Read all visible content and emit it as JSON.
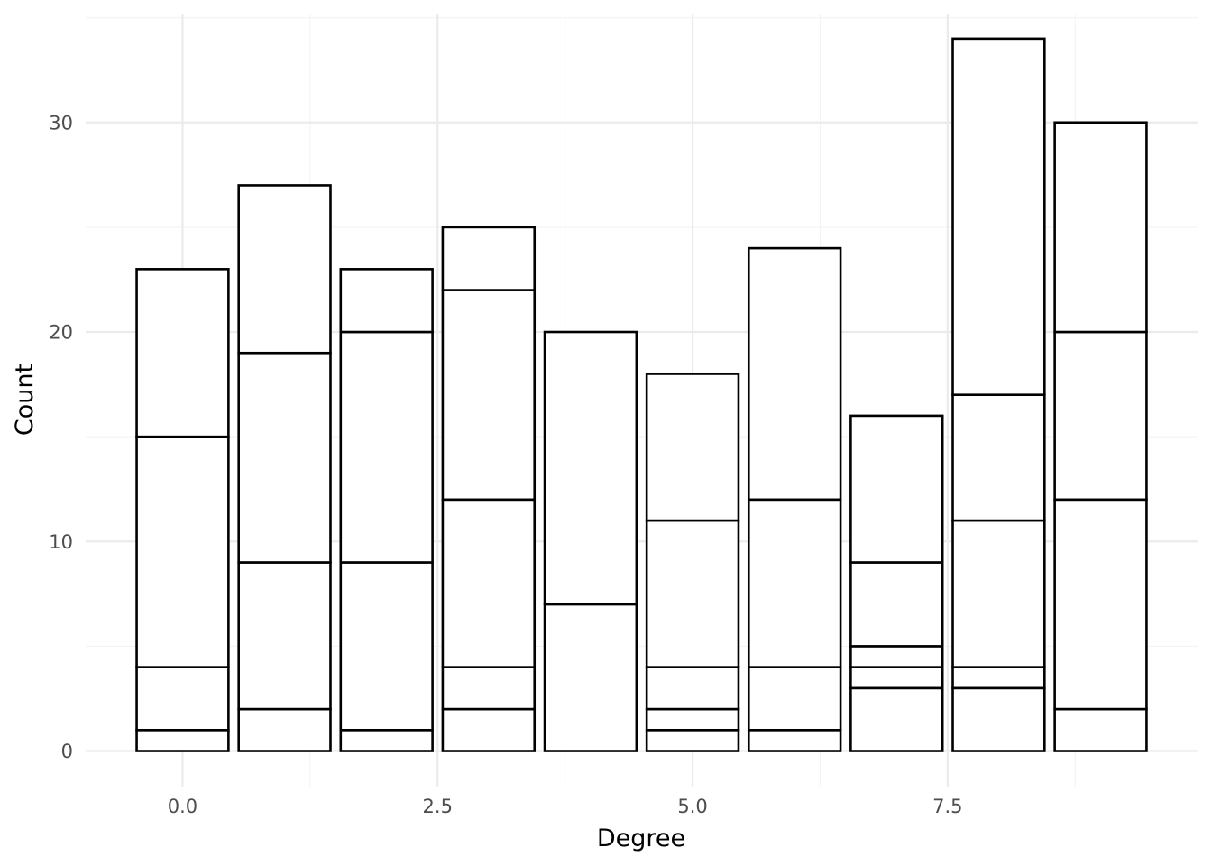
{
  "chart_data": {
    "type": "bar",
    "stacked": true,
    "title": "",
    "xlabel": "Degree",
    "ylabel": "Count",
    "xlim": [
      -0.95,
      9.95
    ],
    "ylim": [
      -1.7,
      35.2
    ],
    "x_ticks": [
      0.0,
      2.5,
      5.0,
      7.5
    ],
    "x_tick_labels": [
      "0.0",
      "2.5",
      "5.0",
      "7.5"
    ],
    "y_ticks": [
      0,
      10,
      20,
      30
    ],
    "y_tick_labels": [
      "0",
      "10",
      "20",
      "30"
    ],
    "bar_width": 0.9,
    "grid": true,
    "legend": "none",
    "fill_color": "#ffffff",
    "outline_color": "#000000",
    "x": [
      0,
      1,
      2,
      3,
      4,
      5,
      6,
      7,
      8,
      9
    ],
    "stack_boundaries": [
      [
        0,
        1,
        4,
        15,
        23
      ],
      [
        0,
        2,
        9,
        19,
        27
      ],
      [
        0,
        1,
        9,
        20,
        23
      ],
      [
        0,
        2,
        4,
        12,
        22,
        25
      ],
      [
        0,
        7,
        20
      ],
      [
        0,
        1,
        2,
        4,
        11,
        18
      ],
      [
        0,
        1,
        4,
        12,
        24
      ],
      [
        0,
        3,
        4,
        5,
        9,
        16
      ],
      [
        0,
        3,
        4,
        11,
        17,
        34
      ],
      [
        0,
        2,
        12,
        20,
        30
      ]
    ],
    "totals": [
      23,
      27,
      23,
      25,
      20,
      18,
      24,
      16,
      34,
      30
    ]
  }
}
